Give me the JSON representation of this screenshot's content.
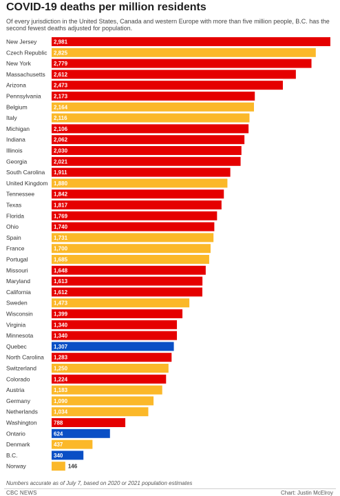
{
  "colors": {
    "us": "#e50000",
    "europe": "#fbb829",
    "canada": "#0a4fc5",
    "label_on_dark": "#ffffff",
    "label_on_light": "#333333"
  },
  "chart_data": {
    "type": "bar",
    "orientation": "horizontal",
    "title": "COVID-19 deaths per million residents",
    "subtitle": "Of every jurisdiction in the United States, Canada and western Europe with more than five million people, B.C. has the second fewest deaths adjusted for population.",
    "xlim": [
      0,
      2981
    ],
    "grid": false,
    "legend": "none",
    "categories": [
      "New Jersey",
      "Czech Republic",
      "New York",
      "Massachusetts",
      "Arizona",
      "Pennsylvania",
      "Belgium",
      "Italy",
      "Michigan",
      "Indiana",
      "Illinois",
      "Georgia",
      "South Carolina",
      "United Kingdom",
      "Tennessee",
      "Texas",
      "Florida",
      "Ohio",
      "Spain",
      "France",
      "Portugal",
      "Missouri",
      "Maryland",
      "California",
      "Sweden",
      "Wisconsin",
      "Virginia",
      "Minnesota",
      "Quebec",
      "North Carolina",
      "Switzerland",
      "Colorado",
      "Austria",
      "Germany",
      "Netherlands",
      "Washington",
      "Ontario",
      "Denmark",
      "B.C.",
      "Norway"
    ],
    "values": [
      2981,
      2825,
      2779,
      2612,
      2473,
      2173,
      2164,
      2116,
      2106,
      2062,
      2030,
      2021,
      1911,
      1880,
      1842,
      1817,
      1769,
      1740,
      1731,
      1700,
      1685,
      1648,
      1613,
      1612,
      1473,
      1399,
      1340,
      1340,
      1307,
      1283,
      1250,
      1224,
      1183,
      1090,
      1034,
      788,
      624,
      437,
      340,
      146
    ],
    "value_labels": [
      "2,981",
      "2,825",
      "2,779",
      "2,612",
      "2,473",
      "2,173",
      "2,164",
      "2,116",
      "2,106",
      "2,062",
      "2,030",
      "2,021",
      "1,911",
      "1,880",
      "1,842",
      "1,817",
      "1,769",
      "1,740",
      "1,731",
      "1,700",
      "1,685",
      "1,648",
      "1,613",
      "1,612",
      "1,473",
      "1,399",
      "1,340",
      "1,340",
      "1,307",
      "1,283",
      "1,250",
      "1,224",
      "1,183",
      "1,090",
      "1,034",
      "788",
      "624",
      "437",
      "340",
      "146"
    ],
    "groups": [
      "us",
      "europe",
      "us",
      "us",
      "us",
      "us",
      "europe",
      "europe",
      "us",
      "us",
      "us",
      "us",
      "us",
      "europe",
      "us",
      "us",
      "us",
      "us",
      "europe",
      "europe",
      "europe",
      "us",
      "us",
      "us",
      "europe",
      "us",
      "us",
      "us",
      "canada",
      "us",
      "europe",
      "us",
      "europe",
      "europe",
      "europe",
      "us",
      "canada",
      "europe",
      "canada",
      "europe"
    ]
  },
  "note": "Numbers accurate as of July 7, based on 2020 or 2021 population estimates",
  "source": "CBC NEWS",
  "credit": "Chart: Justin McElroy"
}
